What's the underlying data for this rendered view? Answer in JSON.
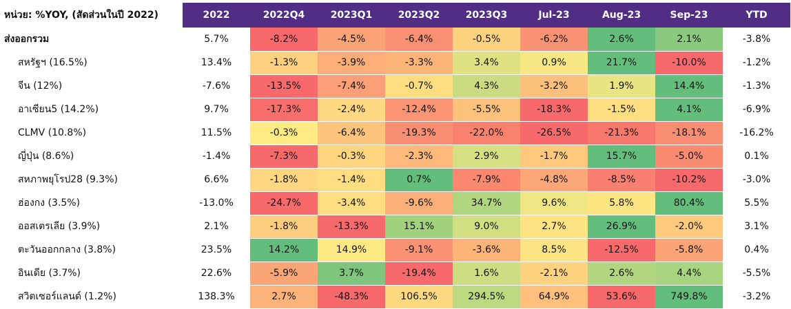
{
  "table": {
    "unit_label": "หน่วย: %YOY, (สัดส่วนในปี 2022)",
    "columns": [
      "2022",
      "2022Q4",
      "2023Q1",
      "2023Q2",
      "2023Q3",
      "Jul-23",
      "Aug-23",
      "Sep-23",
      "YTD"
    ],
    "rows": [
      {
        "label": "ส่งออกรวม",
        "bold": true,
        "values": [
          "5.7%",
          "-8.2%",
          "-4.5%",
          "-6.4%",
          "-0.5%",
          "-6.2%",
          "2.6%",
          "2.1%",
          "-3.8%"
        ],
        "colors": [
          "",
          "#f8696b",
          "#fba276",
          "#fa9073",
          "#fed380",
          "#fa9373",
          "#63be7b",
          "#8ac97e",
          ""
        ]
      },
      {
        "label": "สหรัฐฯ (16.5%)",
        "bold": false,
        "values": [
          "13.4%",
          "-1.3%",
          "-3.9%",
          "-3.3%",
          "3.4%",
          "0.9%",
          "21.7%",
          "-10.0%",
          "-1.2%"
        ],
        "colors": [
          "",
          "#fed07f",
          "#fcad78",
          "#fcb479",
          "#dfe283",
          "#f7e883",
          "#63be7b",
          "#f8696b",
          ""
        ]
      },
      {
        "label": "จีน (12%)",
        "bold": false,
        "values": [
          "-7.6%",
          "-13.5%",
          "-7.4%",
          "-0.7%",
          "4.3%",
          "-3.2%",
          "1.9%",
          "14.4%",
          "-1.3%"
        ],
        "colors": [
          "",
          "#f8696b",
          "#fba076",
          "#fedd81",
          "#c9dc81",
          "#fdc07c",
          "#e9e583",
          "#63be7b",
          ""
        ]
      },
      {
        "label": "อาเซียน5 (14.2%)",
        "bold": false,
        "values": [
          "9.7%",
          "-17.3%",
          "-2.4%",
          "-12.4%",
          "-5.5%",
          "-18.3%",
          "-1.5%",
          "4.1%",
          "-6.9%"
        ],
        "colors": [
          "",
          "#f86e6c",
          "#fed981",
          "#fa9473",
          "#fdc17c",
          "#f8696b",
          "#fede81",
          "#63be7b",
          ""
        ]
      },
      {
        "label": "CLMV (10.8%)",
        "bold": false,
        "values": [
          "11.5%",
          "-0.3%",
          "-6.4%",
          "-19.3%",
          "-22.0%",
          "-26.5%",
          "-21.3%",
          "-18.1%",
          "-16.2%"
        ],
        "colors": [
          "",
          "#ffeb84",
          "#fdc47d",
          "#fa8e72",
          "#f9826f",
          "#f8696b",
          "#f9786e",
          "#fa8e72",
          ""
        ]
      },
      {
        "label": "ญี่ปุ่น (8.6%)",
        "bold": false,
        "values": [
          "-1.4%",
          "-7.3%",
          "-0.3%",
          "-2.3%",
          "2.9%",
          "-1.7%",
          "15.7%",
          "-5.0%",
          "0.1%"
        ],
        "colors": [
          "",
          "#f8696b",
          "#fed680",
          "#fdb97a",
          "#d6df82",
          "#fec87d",
          "#63be7b",
          "#f98b71",
          ""
        ]
      },
      {
        "label": "สหภาพยุโรป28 (9.3%)",
        "bold": false,
        "values": [
          "6.6%",
          "-1.8%",
          "-1.4%",
          "0.7%",
          "-7.9%",
          "-4.8%",
          "-8.5%",
          "-10.2%",
          "-3.0%"
        ],
        "colors": [
          "",
          "#fed780",
          "#fedd81",
          "#63be7b",
          "#f9886f",
          "#fba777",
          "#f98070",
          "#f8696b",
          ""
        ]
      },
      {
        "label": "ฮ่องกง (3.5%)",
        "bold": false,
        "values": [
          "-13.0%",
          "-24.7%",
          "-3.4%",
          "-9.6%",
          "34.7%",
          "9.6%",
          "5.8%",
          "80.4%",
          "5.5%"
        ],
        "colors": [
          "",
          "#f8696b",
          "#fedd81",
          "#fbaf78",
          "#b0d67f",
          "#f0e784",
          "#fee683",
          "#63be7b",
          ""
        ]
      },
      {
        "label": "ออสเตรเลีย (3.9%)",
        "bold": false,
        "values": [
          "2.1%",
          "-1.8%",
          "-13.3%",
          "15.1%",
          "9.0%",
          "2.7%",
          "26.9%",
          "-2.0%",
          "3.1%"
        ],
        "colors": [
          "",
          "#fdcd7e",
          "#f8696b",
          "#a1d27e",
          "#d1de82",
          "#fee482",
          "#63be7b",
          "#fdca7e",
          ""
        ]
      },
      {
        "label": "ตะวันออกกลาง (3.8%)",
        "bold": false,
        "values": [
          "23.5%",
          "14.2%",
          "14.9%",
          "-9.1%",
          "-3.6%",
          "8.5%",
          "-12.5%",
          "-5.8%",
          "0.4%"
        ],
        "colors": [
          "",
          "#63be7b",
          "#feea84",
          "#fa9273",
          "#fcb479",
          "#fee483",
          "#f8696b",
          "#fba475",
          ""
        ]
      },
      {
        "label": "อินเดีย (3.7%)",
        "bold": false,
        "values": [
          "22.6%",
          "-5.9%",
          "3.7%",
          "-19.4%",
          "1.6%",
          "-2.1%",
          "2.6%",
          "4.4%",
          "-5.5%"
        ],
        "colors": [
          "",
          "#fba676",
          "#7fc57d",
          "#f8696b",
          "#ccdd82",
          "#fed27f",
          "#b2d680",
          "#a8d37f",
          ""
        ]
      },
      {
        "label": "สวิตเซอร์แลนด์ (1.2%)",
        "bold": false,
        "values": [
          "138.3%",
          "2.7%",
          "-48.3%",
          "106.5%",
          "294.5%",
          "64.9%",
          "53.6%",
          "749.8%",
          "-3.2%"
        ],
        "colors": [
          "",
          "#fcb37a",
          "#f8696b",
          "#fed980",
          "#bbd980",
          "#fec07c",
          "#f8696b",
          "#63be7b",
          ""
        ]
      }
    ]
  }
}
